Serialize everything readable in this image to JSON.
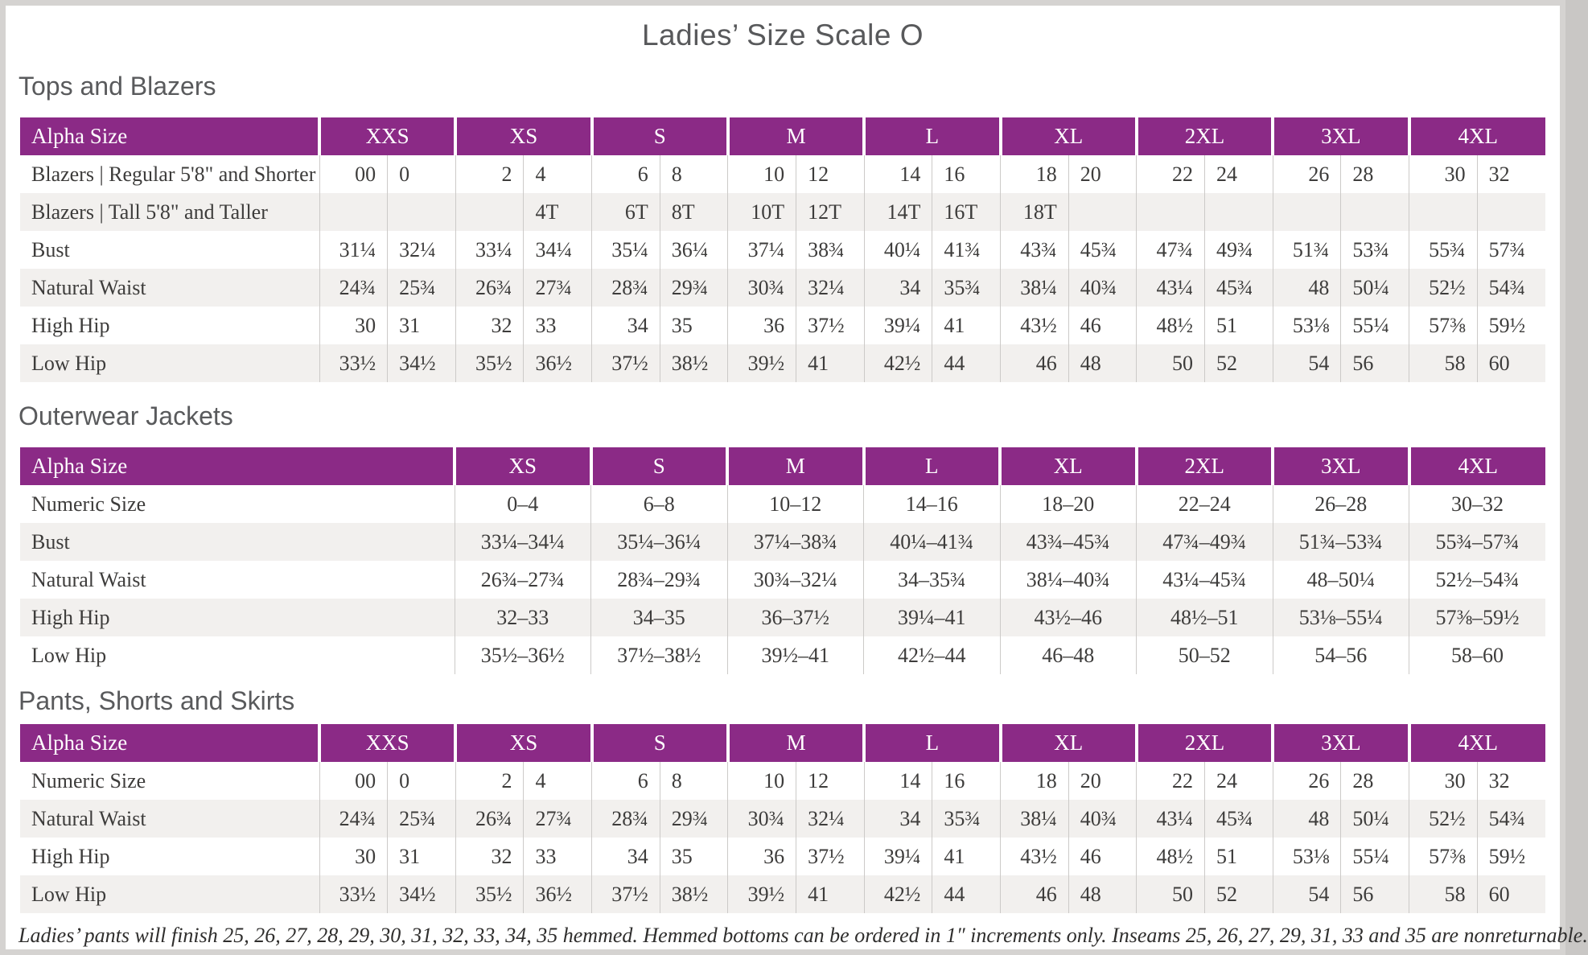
{
  "title": "Ladies’ Size Scale O",
  "colors": {
    "header_purple": "#8b2a86",
    "stripe_gray": "#f2f0ee",
    "grid_line": "#cccac8",
    "heading_gray": "#595a5c",
    "frame_gray": "#d5d3d1"
  },
  "sections": [
    {
      "heading": "Tops and Blazers",
      "type": "paired",
      "label_col": 372,
      "header": {
        "label": "Alpha Size",
        "groups": [
          "XXS",
          "XS",
          "S",
          "M",
          "L",
          "XL",
          "2XL",
          "3XL",
          "4XL"
        ]
      },
      "rows": [
        {
          "label": "Blazers | Regular 5'8\" and Shorter",
          "values": [
            "00",
            "0",
            "2",
            "4",
            "6",
            "8",
            "10",
            "12",
            "14",
            "16",
            "18",
            "20",
            "22",
            "24",
            "26",
            "28",
            "30",
            "32"
          ]
        },
        {
          "label": "Blazers | Tall 5'8\" and Taller",
          "values": [
            "",
            "",
            "",
            "4T",
            "6T",
            "8T",
            "10T",
            "12T",
            "14T",
            "16T",
            "18T",
            "",
            "",
            "",
            "",
            "",
            "",
            ""
          ]
        },
        {
          "label": "Bust",
          "values": [
            "31¼",
            "32¼",
            "33¼",
            "34¼",
            "35¼",
            "36¼",
            "37¼",
            "38¾",
            "40¼",
            "41¾",
            "43¾",
            "45¾",
            "47¾",
            "49¾",
            "51¾",
            "53¾",
            "55¾",
            "57¾"
          ]
        },
        {
          "label": "Natural Waist",
          "values": [
            "24¾",
            "25¾",
            "26¾",
            "27¾",
            "28¾",
            "29¾",
            "30¾",
            "32¼",
            "34",
            "35¾",
            "38¼",
            "40¾",
            "43¼",
            "45¾",
            "48",
            "50¼",
            "52½",
            "54¾"
          ]
        },
        {
          "label": "High Hip",
          "values": [
            "30",
            "31",
            "32",
            "33",
            "34",
            "35",
            "36",
            "37½",
            "39¼",
            "41",
            "43½",
            "46",
            "48½",
            "51",
            "53⅛",
            "55¼",
            "57⅜",
            "59½"
          ]
        },
        {
          "label": "Low Hip",
          "values": [
            "33½",
            "34½",
            "35½",
            "36½",
            "37½",
            "38½",
            "39½",
            "41",
            "42½",
            "44",
            "46",
            "48",
            "50",
            "52",
            "54",
            "56",
            "58",
            "60"
          ]
        }
      ]
    },
    {
      "heading": "Outerwear Jackets",
      "type": "single",
      "label_col": 540,
      "header": {
        "label": "Alpha Size",
        "groups": [
          "XS",
          "S",
          "M",
          "L",
          "XL",
          "2XL",
          "3XL",
          "4XL"
        ]
      },
      "rows": [
        {
          "label": "Numeric Size",
          "values": [
            "0–4",
            "6–8",
            "10–12",
            "14–16",
            "18–20",
            "22–24",
            "26–28",
            "30–32"
          ]
        },
        {
          "label": "Bust",
          "values": [
            "33¼–34¼",
            "35¼–36¼",
            "37¼–38¾",
            "40¼–41¾",
            "43¾–45¾",
            "47¾–49¾",
            "51¾–53¾",
            "55¾–57¾"
          ]
        },
        {
          "label": "Natural Waist",
          "values": [
            "26¾–27¾",
            "28¾–29¾",
            "30¾–32¼",
            "34–35¾",
            "38¼–40¾",
            "43¼–45¾",
            "48–50¼",
            "52½–54¾"
          ]
        },
        {
          "label": "High Hip",
          "values": [
            "32–33",
            "34–35",
            "36–37½",
            "39¼–41",
            "43½–46",
            "48½–51",
            "53⅛–55¼",
            "57⅜–59½"
          ]
        },
        {
          "label": "Low Hip",
          "values": [
            "35½–36½",
            "37½–38½",
            "39½–41",
            "42½–44",
            "46–48",
            "50–52",
            "54–56",
            "58–60"
          ]
        }
      ]
    },
    {
      "heading": "Pants, Shorts and Skirts",
      "type": "paired",
      "label_col": 372,
      "header": {
        "label": "Alpha Size",
        "groups": [
          "XXS",
          "XS",
          "S",
          "M",
          "L",
          "XL",
          "2XL",
          "3XL",
          "4XL"
        ]
      },
      "rows": [
        {
          "label": "Numeric Size",
          "values": [
            "00",
            "0",
            "2",
            "4",
            "6",
            "8",
            "10",
            "12",
            "14",
            "16",
            "18",
            "20",
            "22",
            "24",
            "26",
            "28",
            "30",
            "32"
          ]
        },
        {
          "label": "Natural Waist",
          "values": [
            "24¾",
            "25¾",
            "26¾",
            "27¾",
            "28¾",
            "29¾",
            "30¾",
            "32¼",
            "34",
            "35¾",
            "38¼",
            "40¾",
            "43¼",
            "45¾",
            "48",
            "50¼",
            "52½",
            "54¾"
          ]
        },
        {
          "label": "High Hip",
          "values": [
            "30",
            "31",
            "32",
            "33",
            "34",
            "35",
            "36",
            "37½",
            "39¼",
            "41",
            "43½",
            "46",
            "48½",
            "51",
            "53⅛",
            "55¼",
            "57⅜",
            "59½"
          ]
        },
        {
          "label": "Low Hip",
          "values": [
            "33½",
            "34½",
            "35½",
            "36½",
            "37½",
            "38½",
            "39½",
            "41",
            "42½",
            "44",
            "46",
            "48",
            "50",
            "52",
            "54",
            "56",
            "58",
            "60"
          ]
        }
      ]
    }
  ],
  "footnote": "Ladies’ pants will finish 25, 26, 27, 28, 29, 30, 31, 32, 33, 34, 35 hemmed. Hemmed bottoms can be ordered in 1″ increments only. Inseams 25, 26, 27, 29, 31, 33 and 35 are nonreturnable."
}
